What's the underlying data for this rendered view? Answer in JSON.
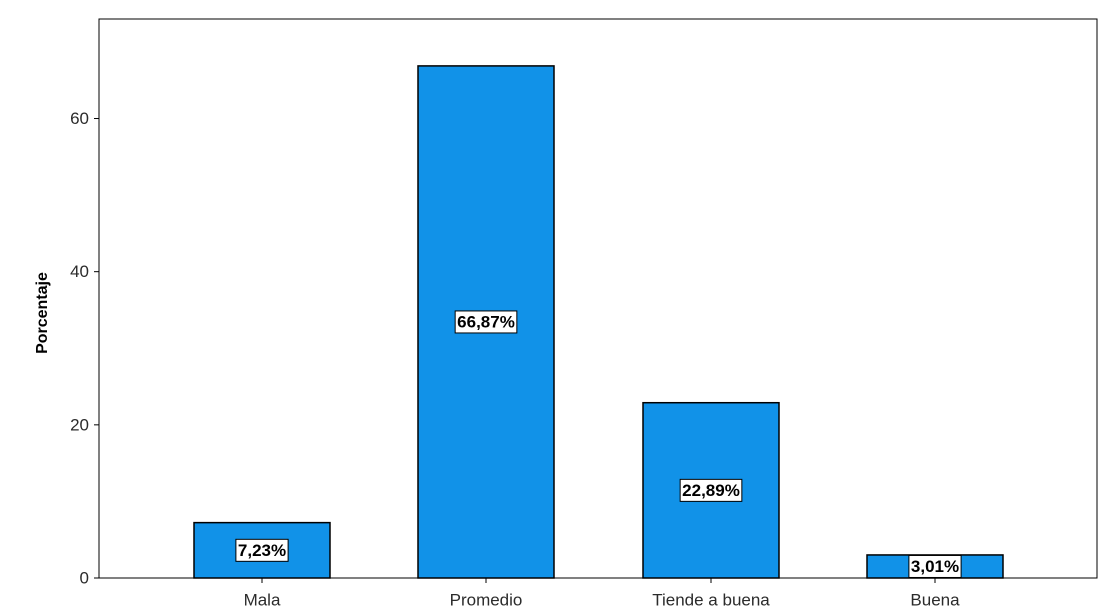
{
  "chart_data": {
    "type": "bar",
    "title": "",
    "xlabel": "",
    "ylabel": "Porcentaje",
    "categories": [
      "Mala",
      "Promedio",
      "Tiende a buena",
      "Buena"
    ],
    "values": [
      7.23,
      66.87,
      22.89,
      3.01
    ],
    "data_labels": [
      "7,23%",
      "66,87%",
      "22,89%",
      "3,01%"
    ],
    "yticks": [
      0,
      20,
      40,
      60
    ],
    "ylim": [
      0,
      74.5
    ],
    "grid": false,
    "legend": "none",
    "bar_color": "#1192e8",
    "bar_edge_color": "#000000"
  }
}
